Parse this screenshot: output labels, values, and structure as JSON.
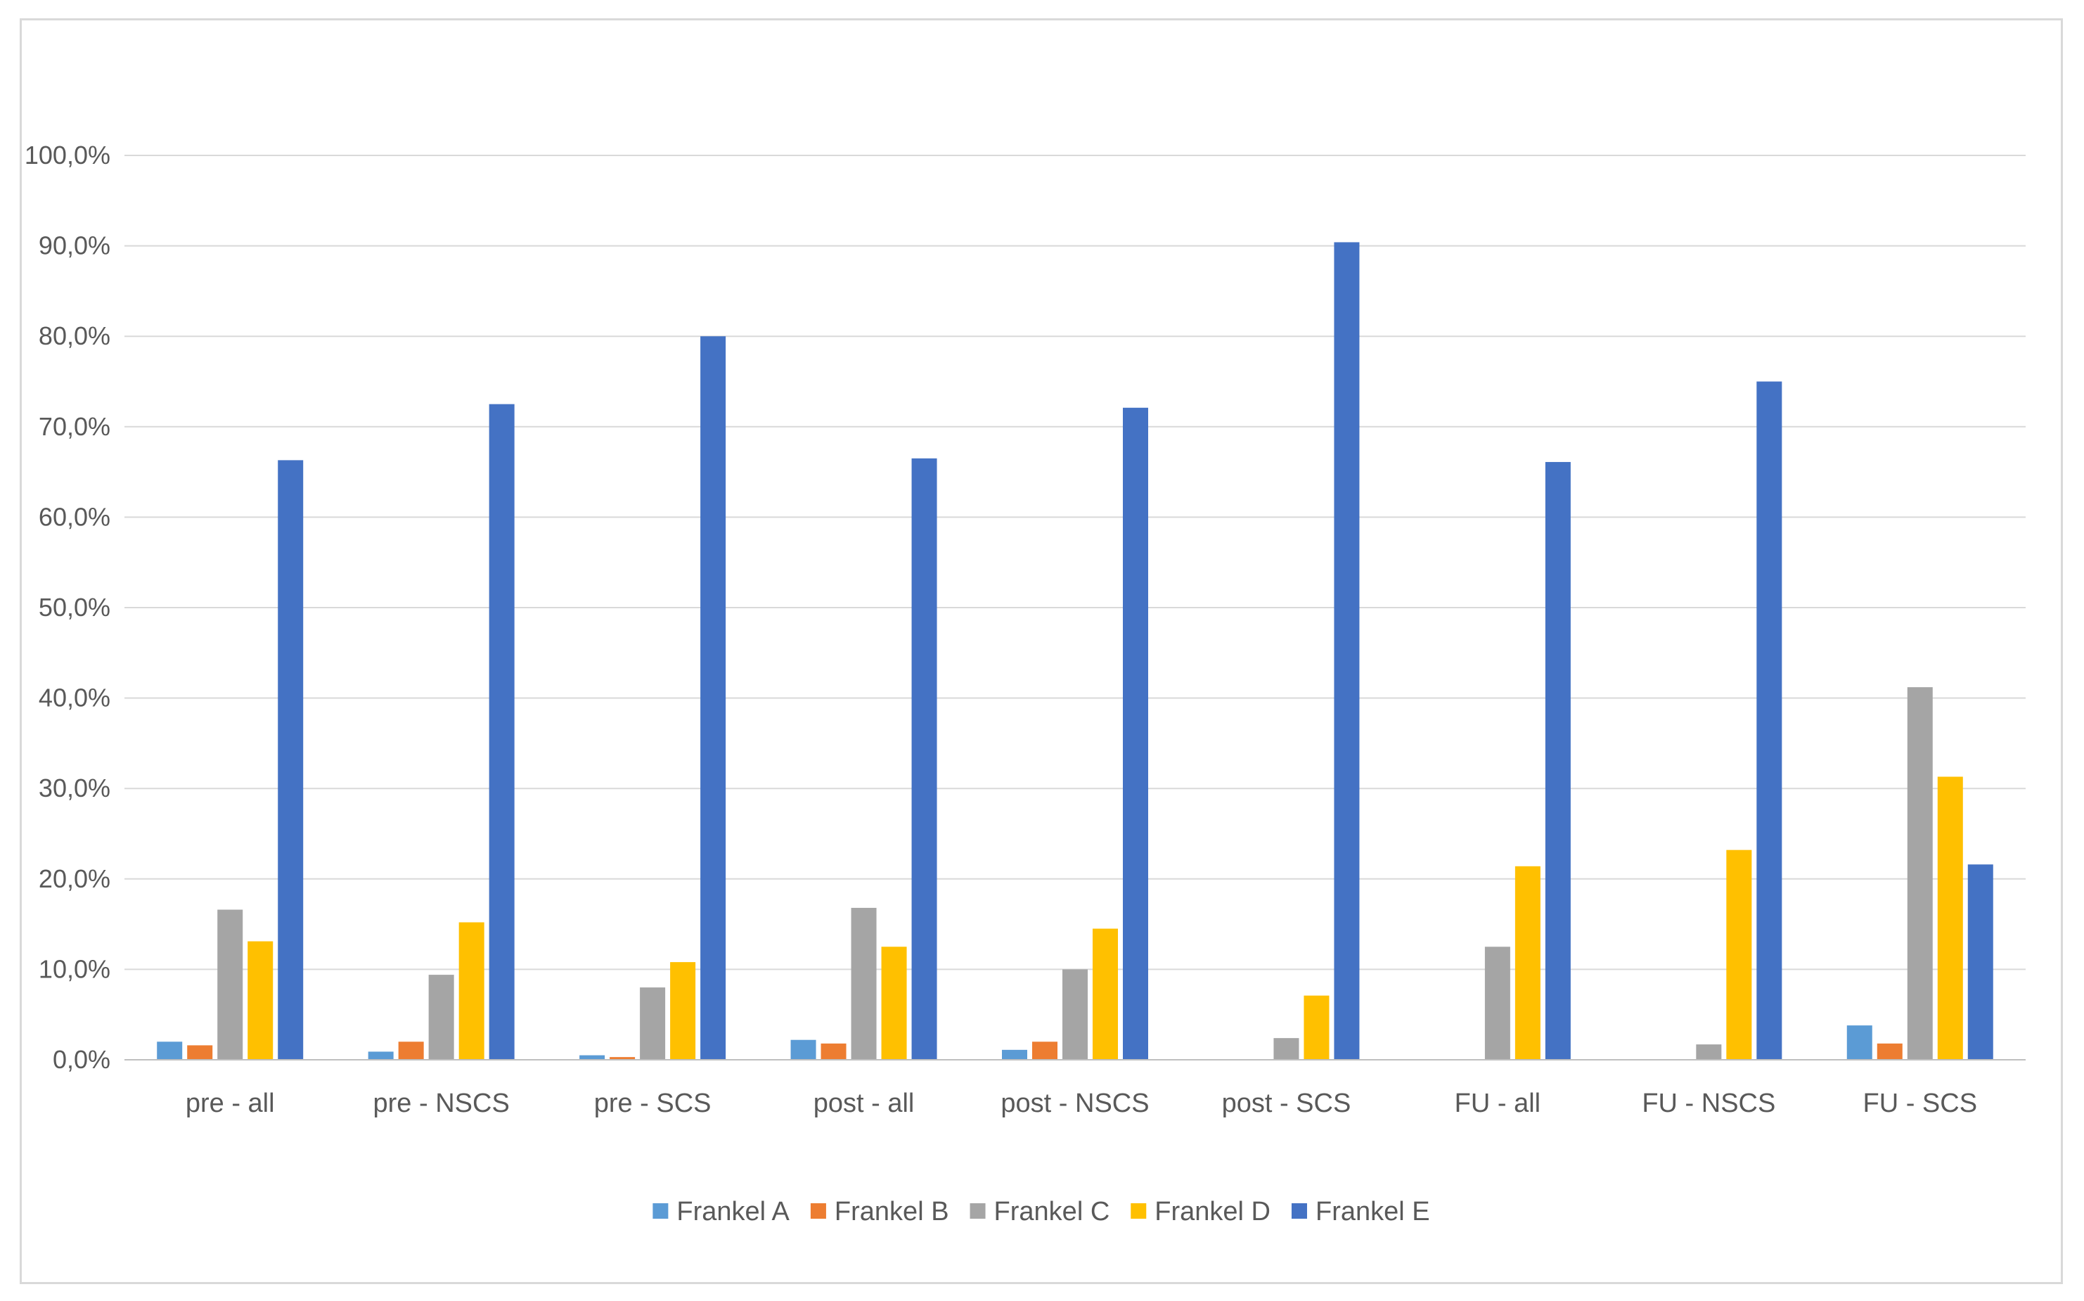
{
  "chart_data": {
    "type": "bar",
    "title": "",
    "xlabel": "",
    "ylabel": "",
    "ylim": [
      0,
      100
    ],
    "y_ticks": [
      "0,0%",
      "10,0%",
      "20,0%",
      "30,0%",
      "40,0%",
      "50,0%",
      "60,0%",
      "70,0%",
      "80,0%",
      "90,0%",
      "100,0%"
    ],
    "grid": true,
    "legend_position": "bottom",
    "categories": [
      "pre - all",
      "pre - NSCS",
      "pre - SCS",
      "post - all",
      "post - NSCS",
      "post - SCS",
      "FU - all",
      "FU - NSCS",
      "FU - SCS"
    ],
    "series": [
      {
        "name": "Frankel A",
        "color": "#5b9bd5",
        "values": [
          2.0,
          0.9,
          0.5,
          2.2,
          1.1,
          0.0,
          0.0,
          0.0,
          3.8
        ]
      },
      {
        "name": "Frankel B",
        "color": "#ed7d31",
        "values": [
          1.6,
          2.0,
          0.3,
          1.8,
          2.0,
          0.0,
          0.0,
          0.0,
          1.8
        ]
      },
      {
        "name": "Frankel C",
        "color": "#a5a5a5",
        "values": [
          16.6,
          9.4,
          8.0,
          16.8,
          10.0,
          2.4,
          12.5,
          1.7,
          41.2
        ]
      },
      {
        "name": "Frankel D",
        "color": "#ffc000",
        "values": [
          13.1,
          15.2,
          10.8,
          12.5,
          14.5,
          7.1,
          21.4,
          23.2,
          31.3
        ]
      },
      {
        "name": "Frankel E",
        "color": "#4472c4",
        "values": [
          66.3,
          72.5,
          80.0,
          66.5,
          72.1,
          90.4,
          66.1,
          75.0,
          21.6
        ]
      }
    ]
  }
}
